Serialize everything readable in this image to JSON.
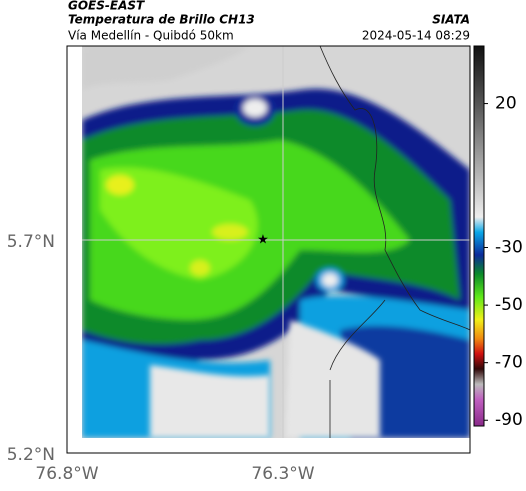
{
  "header": {
    "title": "GOES-EAST",
    "subtitle": "Temperatura de Brillo CH13",
    "location": "Vía Medellín - Quibdó 50km",
    "source": "SIATA",
    "timestamp": "2024-05-14 08:29"
  },
  "axes": {
    "lat_labels": [
      "5.7°N",
      "5.2°N"
    ],
    "lon_labels": [
      "76.8°W",
      "76.3°W"
    ]
  },
  "colorbar": {
    "lim": [
      -92,
      40
    ],
    "ticks": [
      20,
      -30,
      -50,
      -70,
      -90
    ]
  }
}
